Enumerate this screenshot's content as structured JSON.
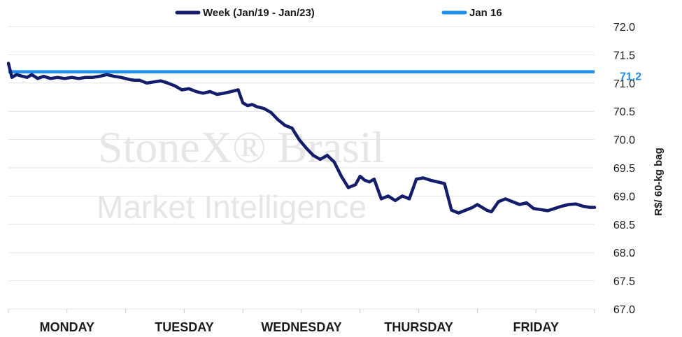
{
  "chart_data": {
    "type": "line",
    "ylabel": "R$/ 60-kg bag",
    "ylim": [
      67.0,
      72.0
    ],
    "y_ticks": [
      "72.0",
      "71.5",
      "71.0",
      "70.5",
      "70.0",
      "69.5",
      "69.0",
      "68.5",
      "68.0",
      "67.5",
      "67.0"
    ],
    "categories": [
      "MONDAY",
      "TUESDAY",
      "WEDNESDAY",
      "THURSDAY",
      "FRIDAY"
    ],
    "grid": true,
    "legend_position": "top",
    "series": [
      {
        "name": "Week (Jan/19 - Jan/23)",
        "color": "#141d6b",
        "x": [
          0.0,
          0.03,
          0.07,
          0.12,
          0.16,
          0.2,
          0.25,
          0.3,
          0.36,
          0.42,
          0.48,
          0.54,
          0.6,
          0.66,
          0.72,
          0.78,
          0.84,
          0.9,
          0.96,
          1.0,
          1.04,
          1.08,
          1.12,
          1.18,
          1.24,
          1.3,
          1.36,
          1.42,
          1.48,
          1.54,
          1.6,
          1.66,
          1.72,
          1.78,
          1.84,
          1.9,
          1.96,
          2.0,
          2.04,
          2.08,
          2.12,
          2.18,
          2.24,
          2.3,
          2.36,
          2.42,
          2.48,
          2.54,
          2.6,
          2.66,
          2.72,
          2.78,
          2.84,
          2.9,
          2.96,
          3.0,
          3.04,
          3.08,
          3.12,
          3.18,
          3.24,
          3.3,
          3.36,
          3.42,
          3.48,
          3.54,
          3.6,
          3.66,
          3.72,
          3.78,
          3.84,
          3.9,
          3.96,
          4.0,
          4.04,
          4.08,
          4.12,
          4.18,
          4.24,
          4.3,
          4.36,
          4.42,
          4.48,
          4.54,
          4.6,
          4.66,
          4.72,
          4.78,
          4.84,
          4.9,
          4.96,
          5.0
        ],
        "values": [
          71.35,
          71.1,
          71.15,
          71.12,
          71.1,
          71.15,
          71.08,
          71.12,
          71.08,
          71.1,
          71.08,
          71.1,
          71.08,
          71.1,
          71.1,
          71.12,
          71.15,
          71.12,
          71.1,
          71.08,
          71.06,
          71.05,
          71.05,
          71.0,
          71.02,
          71.04,
          71.0,
          70.95,
          70.88,
          70.9,
          70.85,
          70.82,
          70.85,
          70.8,
          70.82,
          70.85,
          70.88,
          70.65,
          70.6,
          70.62,
          70.58,
          70.55,
          70.48,
          70.35,
          70.25,
          70.2,
          70.0,
          69.85,
          69.72,
          69.65,
          69.72,
          69.6,
          69.35,
          69.15,
          69.2,
          69.35,
          69.28,
          69.25,
          69.3,
          68.95,
          69.0,
          68.92,
          69.0,
          68.95,
          69.3,
          69.32,
          69.28,
          69.25,
          69.22,
          68.75,
          68.7,
          68.75,
          68.8,
          68.85,
          68.8,
          68.75,
          68.72,
          68.9,
          68.95,
          68.9,
          68.85,
          68.88,
          68.78,
          68.76,
          68.74,
          68.78,
          68.82,
          68.85,
          68.86,
          68.82,
          68.8,
          68.8
        ]
      },
      {
        "name": "Jan 16",
        "color": "#1f8ded",
        "value": 71.2,
        "label": "71.2"
      }
    ]
  },
  "watermark": {
    "line1": "StoneX® Brasil",
    "line2": "Market Intelligence"
  }
}
